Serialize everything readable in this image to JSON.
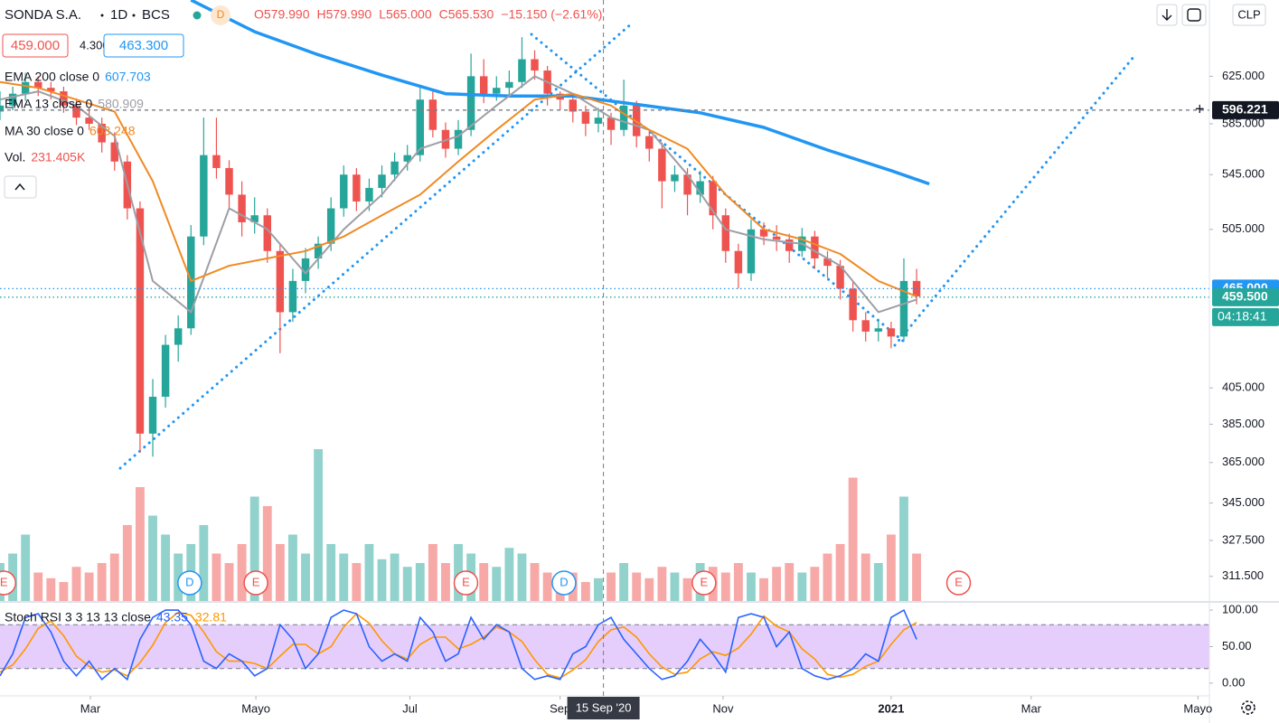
{
  "header": {
    "symbol": "SONDA S.A.",
    "interval": "1D",
    "exchange": "BCS",
    "badge": "D",
    "ohlc": [
      "O579.990",
      "H579.990",
      "L565.000",
      "C565.530",
      "−15.150 (−2.61%)"
    ],
    "quote": [
      "459.000",
      "4.300",
      "463.300"
    ],
    "currency": "CLP"
  },
  "chart_data": {
    "type": "candlestick",
    "up_color": "#26a69a",
    "down_color": "#ef5350",
    "candles": [
      [
        595,
        612,
        588,
        600
      ],
      [
        600,
        616,
        596,
        610
      ],
      [
        610,
        628,
        604,
        620
      ],
      [
        620,
        625,
        608,
        615
      ],
      [
        615,
        620,
        605,
        612
      ],
      [
        612,
        616,
        594,
        600
      ],
      [
        600,
        606,
        584,
        590
      ],
      [
        590,
        598,
        580,
        585
      ],
      [
        585,
        590,
        562,
        570
      ],
      [
        570,
        578,
        548,
        555
      ],
      [
        555,
        560,
        512,
        520
      ],
      [
        520,
        525,
        370,
        380
      ],
      [
        380,
        410,
        368,
        400
      ],
      [
        400,
        436,
        394,
        430
      ],
      [
        430,
        448,
        420,
        440
      ],
      [
        440,
        508,
        436,
        500
      ],
      [
        500,
        590,
        494,
        560
      ],
      [
        560,
        590,
        542,
        550
      ],
      [
        550,
        556,
        520,
        530
      ],
      [
        530,
        540,
        500,
        510
      ],
      [
        510,
        528,
        502,
        515
      ],
      [
        515,
        520,
        482,
        490
      ],
      [
        490,
        495,
        425,
        450
      ],
      [
        450,
        478,
        444,
        470
      ],
      [
        470,
        492,
        462,
        485
      ],
      [
        485,
        500,
        478,
        495
      ],
      [
        495,
        528,
        490,
        520
      ],
      [
        520,
        552,
        514,
        545
      ],
      [
        545,
        550,
        518,
        525
      ],
      [
        525,
        542,
        518,
        535
      ],
      [
        535,
        552,
        528,
        545
      ],
      [
        545,
        562,
        540,
        555
      ],
      [
        555,
        568,
        548,
        560
      ],
      [
        560,
        615,
        555,
        605
      ],
      [
        605,
        612,
        574,
        580
      ],
      [
        580,
        586,
        558,
        565
      ],
      [
        565,
        588,
        560,
        580
      ],
      [
        580,
        645,
        575,
        625
      ],
      [
        625,
        640,
        602,
        610
      ],
      [
        610,
        625,
        604,
        615
      ],
      [
        615,
        630,
        608,
        620
      ],
      [
        620,
        660,
        615,
        640
      ],
      [
        640,
        648,
        622,
        630
      ],
      [
        630,
        634,
        600,
        610
      ],
      [
        610,
        612,
        596,
        605
      ],
      [
        605,
        610,
        586,
        595
      ],
      [
        595,
        600,
        575,
        585
      ],
      [
        585,
        598,
        578,
        590
      ],
      [
        590,
        594,
        568,
        580
      ],
      [
        580,
        622,
        575,
        600
      ],
      [
        600,
        604,
        566,
        575
      ],
      [
        575,
        580,
        555,
        565
      ],
      [
        565,
        570,
        520,
        540
      ],
      [
        540,
        552,
        532,
        545
      ],
      [
        545,
        550,
        515,
        530
      ],
      [
        530,
        548,
        524,
        540
      ],
      [
        540,
        544,
        505,
        515
      ],
      [
        515,
        520,
        482,
        490
      ],
      [
        490,
        495,
        465,
        475
      ],
      [
        475,
        512,
        470,
        505
      ],
      [
        505,
        510,
        494,
        500
      ],
      [
        500,
        508,
        490,
        498
      ],
      [
        498,
        502,
        482,
        490
      ],
      [
        490,
        506,
        486,
        500
      ],
      [
        500,
        504,
        478,
        485
      ],
      [
        485,
        490,
        472,
        480
      ],
      [
        480,
        484,
        458,
        465
      ],
      [
        465,
        470,
        438,
        445
      ],
      [
        445,
        450,
        432,
        438
      ],
      [
        438,
        446,
        432,
        440
      ],
      [
        440,
        444,
        428,
        435
      ],
      [
        435,
        485,
        432,
        470
      ],
      [
        470,
        478,
        455,
        460
      ]
    ],
    "xlim": [
      0,
      95
    ],
    "xticks": [
      {
        "value": 7.1,
        "label": "Mar"
      },
      {
        "value": 20.1,
        "label": "Mayo"
      },
      {
        "value": 32.2,
        "label": "Jul"
      },
      {
        "value": 44,
        "label": "Sep"
      },
      {
        "value": 56.8,
        "label": "Nov"
      },
      {
        "value": 70,
        "label": "2021"
      },
      {
        "value": 81,
        "label": "Mar"
      },
      {
        "value": 94.1,
        "label": "Mayo"
      }
    ],
    "ylim": [
      301,
      695
    ],
    "log_scale": true,
    "yticks": [
      {
        "value": 625,
        "label": "625.000"
      },
      {
        "value": 585,
        "label": "585.000"
      },
      {
        "value": 545,
        "label": "545.000"
      },
      {
        "value": 505,
        "label": "505.000"
      },
      {
        "value": 405,
        "label": "405.000"
      },
      {
        "value": 385,
        "label": "385.000"
      },
      {
        "value": 365,
        "label": "365.000"
      },
      {
        "value": 345,
        "label": "345.000"
      },
      {
        "value": 327.5,
        "label": "327.500"
      },
      {
        "value": 311.5,
        "label": "311.500"
      }
    ],
    "volume": [
      200,
      250,
      350,
      150,
      120,
      100,
      180,
      150,
      200,
      250,
      400,
      600,
      450,
      350,
      250,
      300,
      400,
      250,
      200,
      300,
      550,
      500,
      300,
      350,
      250,
      800,
      300,
      250,
      200,
      300,
      220,
      250,
      180,
      200,
      300,
      200,
      300,
      250,
      200,
      180,
      280,
      250,
      200,
      150,
      120,
      150,
      100,
      120,
      150,
      200,
      150,
      120,
      180,
      150,
      120,
      200,
      180,
      150,
      200,
      150,
      120,
      180,
      200,
      150,
      180,
      250,
      300,
      650,
      250,
      200,
      350,
      550,
      250
    ],
    "volume_lim": [
      0,
      1000
    ],
    "volume_legend": {
      "name": "Vol.",
      "value": "231.405K",
      "color": "#ef5350"
    },
    "series": [
      {
        "name": "EMA 200 close 0",
        "legend_value": "607.703",
        "color": "#2196f3",
        "width": 3.5,
        "x": [
          15,
          20,
          25,
          30,
          35,
          40,
          45,
          50,
          55,
          60,
          65,
          70,
          73
        ],
        "values": [
          695,
          665,
          644,
          626,
          610,
          608,
          608,
          601,
          594,
          582,
          564,
          548,
          538
        ]
      },
      {
        "name": "EMA 13 close 0",
        "legend_value": "580.909",
        "color": "#9e9ea6",
        "width": 2,
        "x": [
          0,
          3,
          6,
          9,
          12,
          15,
          18,
          21,
          24,
          27,
          30,
          33,
          36,
          39,
          42,
          45,
          48,
          51,
          54,
          57,
          60,
          63,
          66,
          69,
          72
        ],
        "values": [
          605,
          612,
          600,
          575,
          470,
          450,
          520,
          505,
          475,
          505,
          530,
          565,
          575,
          600,
          625,
          610,
          590,
          580,
          545,
          505,
          498,
          495,
          480,
          450,
          458
        ]
      },
      {
        "name": "MA 30 close 0",
        "legend_value": "603.248",
        "color": "#f08a24",
        "width": 2,
        "x": [
          0,
          3,
          6,
          9,
          12,
          15,
          18,
          21,
          24,
          27,
          30,
          33,
          36,
          39,
          42,
          45,
          48,
          51,
          54,
          57,
          60,
          63,
          66,
          69,
          72
        ],
        "values": [
          620,
          615,
          605,
          595,
          540,
          470,
          480,
          485,
          490,
          500,
          515,
          530,
          555,
          580,
          605,
          610,
          600,
          580,
          565,
          530,
          505,
          498,
          488,
          470,
          460
        ]
      }
    ],
    "price_labels": [
      {
        "value": 596.221,
        "label": "596.221",
        "color": "#131722",
        "style": "dashed"
      },
      {
        "value": 465,
        "label": "465.000",
        "color": "#2196f3",
        "style": "dotted"
      },
      {
        "value": 459.5,
        "label": "459.500",
        "color": "#26a69a",
        "style": "dotted"
      }
    ],
    "countdown": "04:18:41",
    "crosshair": {
      "x": 47.4,
      "label": "15 Sep '20"
    },
    "events": [
      {
        "x": 0.3,
        "label": "E",
        "color": "#ef5350"
      },
      {
        "x": 14.9,
        "label": "D",
        "color": "#2196f3"
      },
      {
        "x": 20.1,
        "label": "E",
        "color": "#ef5350"
      },
      {
        "x": 36.6,
        "label": "E",
        "color": "#ef5350"
      },
      {
        "x": 44.3,
        "label": "D",
        "color": "#2196f3"
      },
      {
        "x": 55.3,
        "label": "E",
        "color": "#ef5350"
      },
      {
        "x": 75.3,
        "label": "E",
        "color": "#ef5350"
      }
    ],
    "stoch": {
      "name": "Stoch RSI 3 3 13 13 close",
      "k_label": "43.35",
      "d_label": "32.81",
      "k_color": "#2962ff",
      "d_color": "#ff9800",
      "ylim": [
        -17.5,
        110
      ],
      "yticks": [
        {
          "value": 100,
          "label": "100.00"
        },
        {
          "value": 50,
          "label": "50.00"
        },
        {
          "value": 0,
          "label": "0.00"
        }
      ],
      "bands": [
        20,
        80
      ],
      "k": [
        10,
        40,
        90,
        95,
        70,
        30,
        10,
        30,
        5,
        20,
        5,
        60,
        90,
        100,
        100,
        80,
        30,
        20,
        40,
        30,
        10,
        20,
        80,
        60,
        20,
        40,
        90,
        100,
        95,
        50,
        30,
        40,
        30,
        90,
        70,
        30,
        40,
        90,
        60,
        80,
        70,
        20,
        5,
        10,
        5,
        40,
        50,
        80,
        90,
        60,
        40,
        20,
        5,
        10,
        30,
        60,
        40,
        15,
        90,
        95,
        90,
        50,
        70,
        20,
        10,
        5,
        10,
        20,
        40,
        30,
        90,
        100,
        60
      ],
      "d": [
        15,
        25,
        47,
        75,
        85,
        65,
        37,
        23,
        15,
        18,
        10,
        28,
        52,
        83,
        97,
        93,
        70,
        43,
        30,
        30,
        27,
        20,
        37,
        53,
        53,
        40,
        50,
        77,
        95,
        82,
        58,
        40,
        33,
        53,
        63,
        63,
        47,
        53,
        63,
        77,
        70,
        57,
        32,
        12,
        7,
        18,
        32,
        57,
        73,
        77,
        63,
        40,
        22,
        12,
        15,
        33,
        43,
        38,
        48,
        67,
        92,
        78,
        70,
        47,
        33,
        12,
        8,
        12,
        23,
        30,
        53,
        73,
        83
      ]
    }
  }
}
